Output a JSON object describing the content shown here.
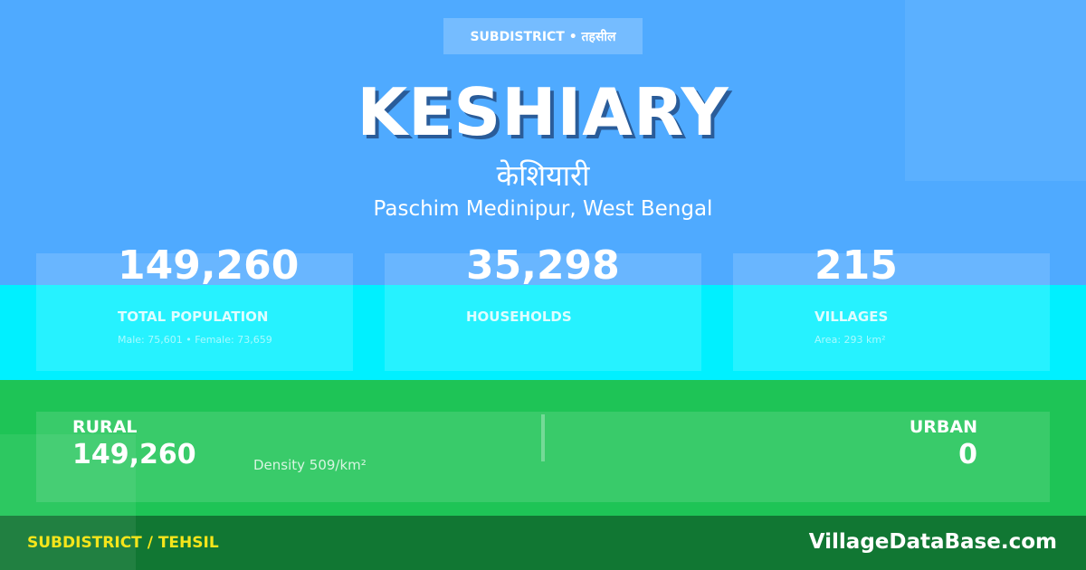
{
  "badge": "SUBDISTRICT • तहसील",
  "title": "KESHIARY",
  "title_hindi": "केशियारी",
  "location": "Paschim Medinipur, West Bengal",
  "stats": [
    {
      "value": "149,260",
      "label": "TOTAL POPULATION",
      "sub": "Male: 75,601 • Female: 73,659"
    },
    {
      "value": "35,298",
      "label": "HOUSEHOLDS",
      "sub": ""
    },
    {
      "value": "215",
      "label": "VILLAGES",
      "sub": "Area: 293 km²"
    }
  ],
  "rural": {
    "label": "RURAL",
    "value": "149,260",
    "density": "Density 509/km²"
  },
  "urban": {
    "label": "URBAN",
    "value": "0"
  },
  "footer": {
    "category": "SUBDISTRICT / TEHSIL",
    "site": "VillageDataBase.com"
  },
  "colors": {
    "top": "#4faaff",
    "cyan": "#00f0ff",
    "green": "#1ec456",
    "footer": "#117733",
    "accent": "#f5e51b"
  }
}
